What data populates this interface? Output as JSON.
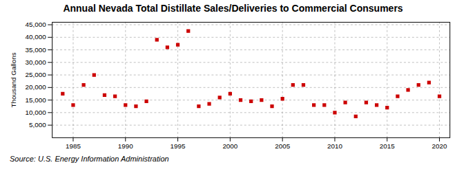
{
  "chart_data": {
    "type": "scatter",
    "title": "Annual Nevada Total Distillate Sales/Deliveries to Commercial Consumers",
    "ylabel": "Thousand Gallons",
    "source": "Source: U.S. Energy Information Administration",
    "x": [
      1984,
      1985,
      1986,
      1987,
      1988,
      1989,
      1990,
      1991,
      1992,
      1993,
      1994,
      1995,
      1996,
      1997,
      1998,
      1999,
      2000,
      2001,
      2002,
      2003,
      2004,
      2005,
      2006,
      2007,
      2008,
      2009,
      2010,
      2011,
      2012,
      2013,
      2014,
      2015,
      2016,
      2017,
      2018,
      2019,
      2020
    ],
    "values": [
      17500,
      13000,
      21000,
      25000,
      17000,
      16500,
      13000,
      12500,
      14500,
      39000,
      36000,
      37000,
      42500,
      12500,
      13500,
      16000,
      17500,
      15000,
      14500,
      15000,
      12500,
      15500,
      21000,
      21000,
      13000,
      13000,
      10000,
      14000,
      8500,
      14000,
      13000,
      12000,
      16500,
      19000,
      21000,
      22000,
      16500
    ],
    "color": "#cc0000",
    "marker": "square",
    "xlim": [
      1983,
      2021
    ],
    "ylim": [
      0,
      46000
    ],
    "xticks": [
      1985,
      1990,
      1995,
      2000,
      2005,
      2010,
      2015,
      2020
    ],
    "yticks": [
      {
        "value": 5000,
        "label": "5,000"
      },
      {
        "value": 10000,
        "label": "10,000"
      },
      {
        "value": 15000,
        "label": "15,000"
      },
      {
        "value": 20000,
        "label": "20,000"
      },
      {
        "value": 25000,
        "label": "25,000"
      },
      {
        "value": 30000,
        "label": "30,000"
      },
      {
        "value": 35000,
        "label": "35,000"
      },
      {
        "value": 40000,
        "label": "40,000"
      },
      {
        "value": 45000,
        "label": "45,000"
      }
    ],
    "grid": true
  }
}
